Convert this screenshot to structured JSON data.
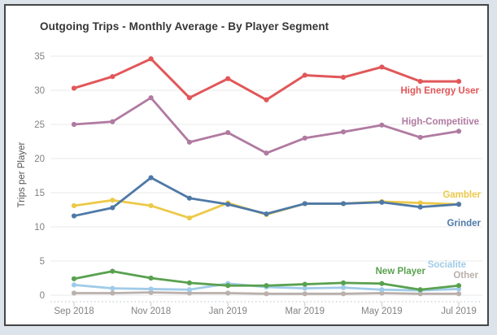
{
  "chart_data": {
    "type": "line",
    "title": "Outgoing Trips - Monthly Average - By Player Segment",
    "xlabel": "",
    "ylabel": "Trips per Player",
    "ylim": [
      0,
      35
    ],
    "yticks": [
      0,
      5,
      10,
      15,
      20,
      25,
      30,
      35
    ],
    "grid": "horizontal",
    "legend_position": "direct-labels-right",
    "x": [
      "Sep 2018",
      "Oct 2018",
      "Nov 2018",
      "Dec 2018",
      "Jan 2019",
      "Feb 2019",
      "Mar 2019",
      "Apr 2019",
      "May 2019",
      "Jun 2019",
      "Jul 2019"
    ],
    "xtick_labels_shown": [
      "Sep 2018",
      "Nov 2018",
      "Jan 2019",
      "Mar 2019",
      "May 2019",
      "Jul 2019"
    ],
    "series": [
      {
        "name": "High Energy User",
        "color": "#E15759",
        "values": [
          30.3,
          32.0,
          34.6,
          28.9,
          31.7,
          28.6,
          32.2,
          31.9,
          33.4,
          31.3,
          31.3
        ]
      },
      {
        "name": "High-Competitive",
        "color": "#B07AA1",
        "values": [
          25.0,
          25.4,
          28.9,
          22.4,
          23.8,
          20.8,
          23.0,
          23.9,
          24.9,
          23.1,
          24.0
        ]
      },
      {
        "name": "Gambler",
        "color": "#EDC948",
        "values": [
          13.1,
          13.9,
          13.1,
          11.3,
          13.5,
          11.8,
          13.4,
          13.4,
          13.7,
          13.5,
          13.3
        ]
      },
      {
        "name": "Grinder",
        "color": "#4E79A7",
        "values": [
          11.6,
          12.8,
          17.2,
          14.2,
          13.3,
          11.9,
          13.4,
          13.4,
          13.6,
          12.9,
          13.3
        ]
      },
      {
        "name": "New Player",
        "color": "#59A14F",
        "values": [
          2.4,
          3.5,
          2.5,
          1.8,
          1.4,
          1.4,
          1.6,
          1.8,
          1.7,
          0.8,
          1.4
        ]
      },
      {
        "name": "Socialite",
        "color": "#A0CBE8",
        "values": [
          1.5,
          1.0,
          0.9,
          0.8,
          1.7,
          1.2,
          1.0,
          1.1,
          0.8,
          0.7,
          0.9
        ]
      },
      {
        "name": "Other",
        "color": "#BAB0AC",
        "values": [
          0.3,
          0.3,
          0.4,
          0.3,
          0.3,
          0.2,
          0.2,
          0.2,
          0.3,
          0.2,
          0.2
        ]
      }
    ]
  },
  "colors": {
    "page_bg": "#DCE3EA",
    "card_bg": "#FFFFFF",
    "card_border": "#454545",
    "grid_line": "#EAEAEA",
    "axis_dotted_line": "#CCD5DE",
    "tick_mark": "#C9C9C9",
    "tick_label": "#828282",
    "title_text": "#363636",
    "axis_title_text": "#555555"
  }
}
